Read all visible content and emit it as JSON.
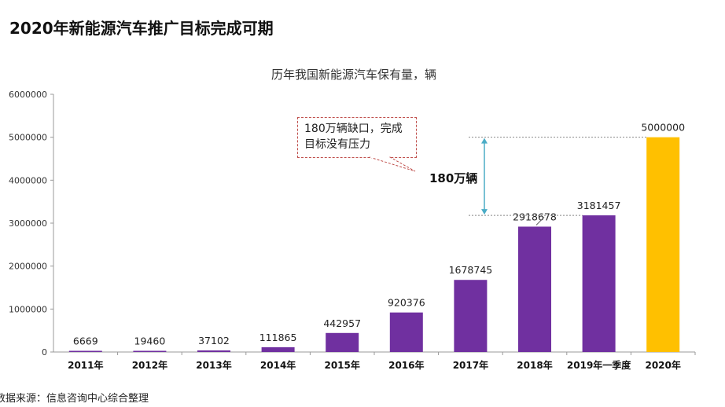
{
  "heading": "2020年新能源汽车推广目标完成可期",
  "source": "数据来源：信息咨询中心综合整理",
  "chart_data": {
    "type": "bar",
    "title": "历年我国新能源汽车保有量，辆",
    "categories": [
      "2011年",
      "2012年",
      "2013年",
      "2014年",
      "2015年",
      "2016年",
      "2017年",
      "2018年",
      "2019年一季度",
      "2020年"
    ],
    "values": [
      6669,
      19460,
      37102,
      111865,
      442957,
      920376,
      1678745,
      2918678,
      3181457,
      5000000
    ],
    "data_labels": [
      "6669",
      "19460",
      "37102",
      "111865",
      "442957",
      "920376",
      "1678745",
      "2918678",
      "3181457",
      "5000000"
    ],
    "yticks": [
      0,
      1000000,
      2000000,
      3000000,
      4000000,
      5000000,
      6000000
    ],
    "ytick_labels": [
      "0",
      "1000000",
      "2000000",
      "3000000",
      "4000000",
      "5000000",
      "6000000"
    ],
    "ylim": [
      0,
      6000000
    ],
    "colors": {
      "actual": "#7030a0",
      "target": "#ffc000",
      "axis": "#999999",
      "gap": "#4bacc6"
    },
    "annotations": {
      "callout": [
        "180万辆缺口，完成",
        "目标没有压力"
      ],
      "gap_label": "180万辆"
    }
  }
}
